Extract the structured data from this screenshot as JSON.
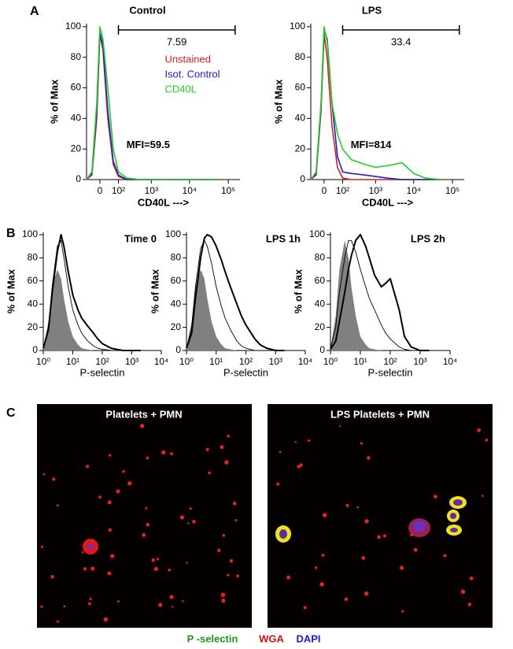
{
  "figure_labels": [
    "A",
    "B",
    "C"
  ],
  "chart_data": [
    {
      "type": "line",
      "title": "Control",
      "x_label": "CD40L --->",
      "y_label": "% of Max",
      "xscale": "biexponential",
      "legend": true,
      "x": [
        -60,
        -30,
        -10,
        0,
        10,
        30,
        60,
        100,
        200,
        500,
        1000,
        2000,
        5000,
        10000,
        20000,
        50000
      ],
      "xlim": [
        -60,
        200000
      ],
      "xticks": [
        0,
        {
          "value": 100,
          "label": "10²"
        },
        {
          "value": 1000,
          "label": "10³"
        },
        {
          "value": 10000,
          "label": "10⁴"
        },
        {
          "value": 100000,
          "label": "10⁵"
        }
      ],
      "ylim": [
        0,
        102
      ],
      "yticks": [
        0,
        20,
        40,
        60,
        80,
        100
      ],
      "series": [
        {
          "name": "Unstained",
          "color": "#d42020",
          "values": [
            0,
            3,
            40,
            95,
            85,
            40,
            10,
            2,
            0,
            0,
            0,
            0,
            0,
            0,
            0,
            0
          ]
        },
        {
          "name": "Isot. Control",
          "color": "#2020c0",
          "values": [
            0,
            4,
            45,
            96,
            88,
            45,
            12,
            3,
            0,
            0,
            0,
            0,
            0,
            0,
            0,
            0
          ]
        },
        {
          "name": "CD40L",
          "color": "#22cc22",
          "values": [
            0,
            5,
            50,
            100,
            92,
            60,
            20,
            5,
            1,
            0,
            0,
            0,
            0,
            0,
            0,
            0
          ]
        }
      ],
      "gate": {
        "range": [
          100,
          150000
        ],
        "label": "7.59"
      },
      "annotation": "MFI=59.5"
    },
    {
      "type": "line",
      "title": "LPS",
      "x_label": "CD40L --->",
      "y_label": "% of Max",
      "xscale": "biexponential",
      "legend": false,
      "x": [
        -60,
        -30,
        -10,
        0,
        10,
        30,
        60,
        100,
        200,
        500,
        1000,
        2000,
        5000,
        10000,
        20000,
        50000
      ],
      "xlim": [
        -60,
        200000
      ],
      "xticks": [
        0,
        {
          "value": 100,
          "label": "10²"
        },
        {
          "value": 1000,
          "label": "10³"
        },
        {
          "value": 10000,
          "label": "10⁴"
        },
        {
          "value": 100000,
          "label": "10⁵"
        }
      ],
      "ylim": [
        0,
        102
      ],
      "yticks": [
        0,
        20,
        40,
        60,
        80,
        100
      ],
      "series": [
        {
          "name": "Unstained",
          "color": "#d42020",
          "values": [
            0,
            3,
            45,
            95,
            80,
            35,
            8,
            1,
            0,
            0,
            0,
            0,
            0,
            0,
            0,
            0
          ]
        },
        {
          "name": "Isot. Control",
          "color": "#2020c0",
          "values": [
            0,
            4,
            48,
            97,
            92,
            50,
            15,
            5,
            4,
            3,
            2,
            1,
            0,
            0,
            0,
            0
          ]
        },
        {
          "name": "CD40L",
          "color": "#22cc22",
          "values": [
            0,
            5,
            50,
            100,
            90,
            50,
            30,
            20,
            13,
            10,
            8,
            9,
            11,
            4,
            1,
            0
          ]
        }
      ],
      "gate": {
        "range": [
          100,
          150000
        ],
        "label": "33.4"
      },
      "annotation": "MFI=814"
    },
    {
      "type": "line",
      "title": "Time 0",
      "x_label": "P-selectin",
      "y_label": "% of Max",
      "xscale": "log",
      "x": [
        1,
        1.5,
        2,
        3,
        4,
        5,
        7,
        10,
        15,
        20,
        30,
        50,
        70,
        100,
        200,
        300,
        500,
        1000,
        2000
      ],
      "xlim": [
        1,
        10000
      ],
      "xticks": [
        {
          "value": 1,
          "label": "10⁰"
        },
        {
          "value": 10,
          "label": "10¹"
        },
        {
          "value": 100,
          "label": "10²"
        },
        {
          "value": 1000,
          "label": "10³"
        },
        {
          "value": 10000,
          "label": "10⁴"
        }
      ],
      "ylim": [
        0,
        102
      ],
      "yticks": [
        0,
        20,
        40,
        60,
        80,
        100
      ],
      "series": [
        {
          "color": "#808080",
          "style": "filled",
          "values": [
            2,
            25,
            55,
            70,
            62,
            45,
            25,
            12,
            5,
            2,
            1,
            0,
            0,
            0,
            0,
            0,
            0,
            0,
            0
          ]
        },
        {
          "color": "#000000",
          "style": "thin",
          "values": [
            2,
            20,
            55,
            90,
            95,
            80,
            55,
            35,
            22,
            15,
            9,
            4,
            2,
            1,
            0,
            0,
            0,
            0,
            0
          ]
        },
        {
          "color": "#000000",
          "style": "thick",
          "values": [
            2,
            18,
            50,
            85,
            100,
            90,
            68,
            48,
            35,
            28,
            22,
            15,
            10,
            6,
            2,
            1,
            0,
            0,
            0
          ]
        }
      ]
    },
    {
      "type": "line",
      "title": "LPS 1h",
      "x_label": "P-selectin",
      "y_label": "% of Max",
      "xscale": "log",
      "x": [
        1,
        1.5,
        2,
        3,
        4,
        5,
        7,
        10,
        15,
        20,
        30,
        50,
        70,
        100,
        200,
        300,
        500,
        1000,
        2000
      ],
      "xlim": [
        1,
        10000
      ],
      "xticks": [
        {
          "value": 1,
          "label": "10⁰"
        },
        {
          "value": 10,
          "label": "10¹"
        },
        {
          "value": 100,
          "label": "10²"
        },
        {
          "value": 1000,
          "label": "10³"
        },
        {
          "value": 10000,
          "label": "10⁴"
        }
      ],
      "ylim": [
        0,
        102
      ],
      "yticks": [
        0,
        20,
        40,
        60,
        80,
        100
      ],
      "series": [
        {
          "color": "#808080",
          "style": "filled",
          "values": [
            2,
            25,
            55,
            70,
            62,
            45,
            25,
            12,
            5,
            2,
            1,
            0,
            0,
            0,
            0,
            0,
            0,
            0,
            0
          ]
        },
        {
          "color": "#000000",
          "style": "thin",
          "values": [
            2,
            20,
            55,
            88,
            95,
            90,
            75,
            55,
            38,
            28,
            18,
            8,
            4,
            2,
            0,
            0,
            0,
            0,
            0
          ]
        },
        {
          "color": "#000000",
          "style": "thick",
          "values": [
            2,
            15,
            45,
            80,
            97,
            100,
            98,
            90,
            78,
            68,
            55,
            40,
            30,
            22,
            10,
            5,
            2,
            0,
            0
          ]
        }
      ]
    },
    {
      "type": "line",
      "title": "LPS 2h",
      "x_label": "P-selectin",
      "y_label": "% of Max",
      "xscale": "log",
      "x": [
        1,
        1.5,
        2,
        3,
        4,
        5,
        7,
        10,
        15,
        20,
        30,
        50,
        70,
        100,
        200,
        300,
        500,
        1000,
        2000
      ],
      "xlim": [
        1,
        10000
      ],
      "xticks": [
        {
          "value": 1,
          "label": "10⁰"
        },
        {
          "value": 10,
          "label": "10¹"
        },
        {
          "value": 100,
          "label": "10²"
        },
        {
          "value": 1000,
          "label": "10³"
        },
        {
          "value": 10000,
          "label": "10⁴"
        }
      ],
      "ylim": [
        0,
        102
      ],
      "yticks": [
        0,
        20,
        40,
        60,
        80,
        100
      ],
      "series": [
        {
          "color": "#808080",
          "style": "filled",
          "values": [
            2,
            30,
            70,
            95,
            80,
            55,
            30,
            12,
            5,
            2,
            1,
            0,
            0,
            0,
            0,
            0,
            0,
            0,
            0
          ]
        },
        {
          "color": "#000000",
          "style": "thin",
          "values": [
            2,
            20,
            50,
            80,
            95,
            95,
            85,
            70,
            55,
            45,
            35,
            22,
            15,
            10,
            3,
            1,
            0,
            0,
            0
          ]
        },
        {
          "color": "#000000",
          "style": "thick",
          "values": [
            1,
            8,
            25,
            50,
            70,
            82,
            95,
            100,
            90,
            80,
            65,
            55,
            58,
            62,
            35,
            12,
            3,
            0,
            0
          ]
        }
      ]
    }
  ],
  "images": [
    {
      "title": "Platelets + PMN"
    },
    {
      "title": "LPS Platelets + PMN"
    }
  ],
  "image_legend": [
    {
      "text": "P -selectin",
      "color": "#1a9a1a"
    },
    {
      "text": "WGA",
      "color": "#d01010"
    },
    {
      "text": "DAPI",
      "color": "#2020c0"
    }
  ]
}
